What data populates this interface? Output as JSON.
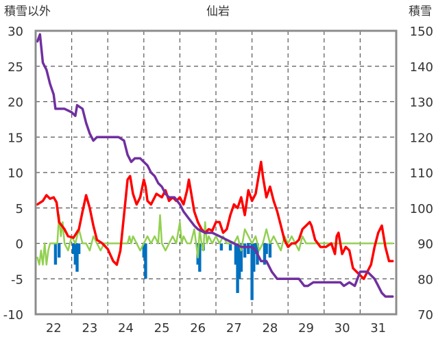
{
  "chart_data": {
    "type": "line",
    "title": "仙岩",
    "ylabel_left": "積雪以外",
    "ylabel_right": "積雪",
    "xlabel": "",
    "x_ticks": [
      "22",
      "23",
      "24",
      "25",
      "26",
      "27",
      "28",
      "29",
      "30",
      "31"
    ],
    "ylim_left": [
      -10,
      30
    ],
    "y_ticks_left": [
      "30",
      "25",
      "20",
      "15",
      "10",
      "5",
      "0",
      "-5",
      "-10"
    ],
    "ylim_right": [
      70,
      150
    ],
    "y_ticks_right": [
      "150",
      "140",
      "130",
      "120",
      "110",
      "100",
      "90",
      "80",
      "70"
    ],
    "xlim": [
      21.5,
      31.5
    ],
    "grid": true,
    "legend": "none",
    "colors": {
      "snow_depth": "#7030a0",
      "temperature": "#ff0000",
      "wind": "#92d050",
      "precipitation": "#0070c0",
      "grid": "#555555",
      "frame": "#8c8c8c"
    },
    "series": [
      {
        "axis": "right",
        "color": "#7030a0",
        "points": [
          [
            21.55,
            147
          ],
          [
            21.62,
            149
          ],
          [
            21.7,
            141
          ],
          [
            21.8,
            139
          ],
          [
            21.9,
            135
          ],
          [
            22.0,
            132
          ],
          [
            22.05,
            128
          ],
          [
            22.15,
            128
          ],
          [
            22.3,
            128
          ],
          [
            22.5,
            127
          ],
          [
            22.6,
            126
          ],
          [
            22.65,
            129
          ],
          [
            22.8,
            128
          ],
          [
            22.9,
            124
          ],
          [
            23.0,
            121
          ],
          [
            23.1,
            119
          ],
          [
            23.2,
            120
          ],
          [
            23.4,
            120
          ],
          [
            23.6,
            120
          ],
          [
            23.8,
            120
          ],
          [
            23.95,
            119
          ],
          [
            24.05,
            115
          ],
          [
            24.15,
            113
          ],
          [
            24.25,
            114
          ],
          [
            24.4,
            114
          ],
          [
            24.5,
            113
          ],
          [
            24.6,
            112
          ],
          [
            24.7,
            110
          ],
          [
            24.8,
            109
          ],
          [
            24.9,
            107
          ],
          [
            25.0,
            106
          ],
          [
            25.1,
            104
          ],
          [
            25.2,
            103
          ],
          [
            25.35,
            103
          ],
          [
            25.5,
            101
          ],
          [
            25.6,
            99
          ],
          [
            25.75,
            97
          ],
          [
            25.9,
            95
          ],
          [
            26.0,
            94
          ],
          [
            26.2,
            93
          ],
          [
            26.4,
            93
          ],
          [
            26.6,
            92
          ],
          [
            26.8,
            91
          ],
          [
            27.0,
            90
          ],
          [
            27.2,
            89
          ],
          [
            27.4,
            89
          ],
          [
            27.5,
            89
          ],
          [
            27.6,
            88
          ],
          [
            27.75,
            85
          ],
          [
            27.9,
            85
          ],
          [
            28.05,
            82
          ],
          [
            28.2,
            80
          ],
          [
            28.5,
            80
          ],
          [
            28.8,
            80
          ],
          [
            28.95,
            78
          ],
          [
            29.05,
            78
          ],
          [
            29.2,
            79
          ],
          [
            29.5,
            79
          ],
          [
            29.8,
            79
          ],
          [
            29.95,
            79
          ],
          [
            30.05,
            78
          ],
          [
            30.2,
            79
          ],
          [
            30.35,
            78
          ],
          [
            30.5,
            82
          ],
          [
            30.7,
            82
          ],
          [
            30.9,
            80
          ],
          [
            31.0,
            78
          ],
          [
            31.1,
            76
          ],
          [
            31.2,
            75
          ],
          [
            31.3,
            75
          ],
          [
            31.4,
            75
          ]
        ]
      },
      {
        "axis": "left",
        "color": "#ff0000",
        "points": [
          [
            21.55,
            5.5
          ],
          [
            21.7,
            6.0
          ],
          [
            21.8,
            6.8
          ],
          [
            21.9,
            6.3
          ],
          [
            22.0,
            6.5
          ],
          [
            22.08,
            5.8
          ],
          [
            22.15,
            3.0
          ],
          [
            22.3,
            2.0
          ],
          [
            22.4,
            1.0
          ],
          [
            22.55,
            0.8
          ],
          [
            22.7,
            2.0
          ],
          [
            22.8,
            4.5
          ],
          [
            22.9,
            6.8
          ],
          [
            23.0,
            5.0
          ],
          [
            23.1,
            2.5
          ],
          [
            23.2,
            0.5
          ],
          [
            23.35,
            0.0
          ],
          [
            23.5,
            -0.8
          ],
          [
            23.65,
            -2.5
          ],
          [
            23.75,
            -3.0
          ],
          [
            23.85,
            -1.0
          ],
          [
            23.95,
            4.0
          ],
          [
            24.05,
            9.0
          ],
          [
            24.12,
            9.5
          ],
          [
            24.2,
            7.0
          ],
          [
            24.3,
            5.5
          ],
          [
            24.4,
            6.5
          ],
          [
            24.5,
            9.0
          ],
          [
            24.55,
            8.0
          ],
          [
            24.6,
            6.0
          ],
          [
            24.7,
            5.5
          ],
          [
            24.85,
            7.0
          ],
          [
            25.0,
            6.5
          ],
          [
            25.1,
            7.5
          ],
          [
            25.2,
            6.0
          ],
          [
            25.3,
            6.5
          ],
          [
            25.4,
            6.0
          ],
          [
            25.5,
            6.5
          ],
          [
            25.6,
            5.5
          ],
          [
            25.7,
            7.5
          ],
          [
            25.75,
            9.0
          ],
          [
            25.8,
            7.5
          ],
          [
            25.9,
            4.5
          ],
          [
            26.0,
            3.0
          ],
          [
            26.1,
            2.0
          ],
          [
            26.2,
            1.5
          ],
          [
            26.3,
            2.0
          ],
          [
            26.4,
            1.8
          ],
          [
            26.5,
            3.0
          ],
          [
            26.6,
            3.0
          ],
          [
            26.7,
            1.5
          ],
          [
            26.8,
            2.0
          ],
          [
            26.9,
            4.0
          ],
          [
            27.0,
            5.5
          ],
          [
            27.1,
            5.0
          ],
          [
            27.2,
            6.5
          ],
          [
            27.3,
            4.0
          ],
          [
            27.4,
            7.5
          ],
          [
            27.5,
            6.0
          ],
          [
            27.6,
            7.0
          ],
          [
            27.7,
            10.0
          ],
          [
            27.75,
            11.5
          ],
          [
            27.8,
            9.5
          ],
          [
            27.9,
            6.5
          ],
          [
            28.0,
            8.0
          ],
          [
            28.1,
            6.0
          ],
          [
            28.2,
            4.5
          ],
          [
            28.3,
            2.5
          ],
          [
            28.4,
            0.5
          ],
          [
            28.5,
            -0.5
          ],
          [
            28.6,
            0.0
          ],
          [
            28.7,
            0.0
          ],
          [
            28.8,
            0.5
          ],
          [
            28.9,
            2.0
          ],
          [
            29.0,
            2.5
          ],
          [
            29.1,
            3.0
          ],
          [
            29.15,
            2.5
          ],
          [
            29.25,
            0.5
          ],
          [
            29.4,
            -0.5
          ],
          [
            29.55,
            -0.5
          ],
          [
            29.7,
            0.0
          ],
          [
            29.8,
            -1.5
          ],
          [
            29.85,
            1.0
          ],
          [
            29.9,
            1.5
          ],
          [
            30.0,
            -1.5
          ],
          [
            30.1,
            -0.5
          ],
          [
            30.2,
            -1.0
          ],
          [
            30.3,
            -3.5
          ],
          [
            30.4,
            -4.0
          ],
          [
            30.5,
            -4.5
          ],
          [
            30.6,
            -5.0
          ],
          [
            30.7,
            -4.0
          ],
          [
            30.8,
            -3.0
          ],
          [
            30.9,
            -0.5
          ],
          [
            31.0,
            1.5
          ],
          [
            31.1,
            2.5
          ],
          [
            31.2,
            -0.5
          ],
          [
            31.3,
            -2.5
          ],
          [
            31.4,
            -2.5
          ]
        ]
      },
      {
        "axis": "left",
        "color": "#92d050",
        "points": [
          [
            21.55,
            -2
          ],
          [
            21.6,
            -3
          ],
          [
            21.65,
            -1
          ],
          [
            21.7,
            -3
          ],
          [
            21.75,
            0
          ],
          [
            21.8,
            -3
          ],
          [
            21.85,
            -1
          ],
          [
            21.9,
            0
          ],
          [
            22.0,
            0
          ],
          [
            22.1,
            0
          ],
          [
            22.15,
            4
          ],
          [
            22.2,
            1
          ],
          [
            22.25,
            3
          ],
          [
            22.3,
            0
          ],
          [
            22.4,
            -1
          ],
          [
            22.5,
            1
          ],
          [
            22.6,
            0
          ],
          [
            22.7,
            2
          ],
          [
            22.8,
            0
          ],
          [
            22.9,
            0
          ],
          [
            23.0,
            -1
          ],
          [
            23.1,
            1
          ],
          [
            23.2,
            0
          ],
          [
            23.3,
            -1
          ],
          [
            23.4,
            0
          ],
          [
            23.5,
            0
          ],
          [
            24.0,
            0
          ],
          [
            24.05,
            0
          ],
          [
            24.1,
            1
          ],
          [
            24.15,
            0
          ],
          [
            24.2,
            1
          ],
          [
            24.3,
            0
          ],
          [
            24.4,
            -1
          ],
          [
            24.5,
            0
          ],
          [
            24.6,
            1
          ],
          [
            24.7,
            0
          ],
          [
            24.8,
            1
          ],
          [
            24.9,
            0
          ],
          [
            24.95,
            4
          ],
          [
            25.0,
            0
          ],
          [
            25.1,
            -1
          ],
          [
            25.2,
            0
          ],
          [
            25.3,
            1
          ],
          [
            25.4,
            0
          ],
          [
            25.5,
            3
          ],
          [
            25.55,
            0
          ],
          [
            25.6,
            1
          ],
          [
            25.7,
            0
          ],
          [
            25.8,
            0
          ],
          [
            25.9,
            2
          ],
          [
            26.0,
            -2
          ],
          [
            26.05,
            2
          ],
          [
            26.1,
            0
          ],
          [
            26.15,
            -1
          ],
          [
            26.2,
            3
          ],
          [
            26.25,
            0
          ],
          [
            26.3,
            1
          ],
          [
            26.4,
            0
          ],
          [
            26.5,
            1
          ],
          [
            26.6,
            0
          ],
          [
            26.7,
            1
          ],
          [
            26.8,
            0
          ],
          [
            26.9,
            0
          ],
          [
            27.0,
            0
          ],
          [
            27.1,
            1
          ],
          [
            27.2,
            -1
          ],
          [
            27.3,
            2
          ],
          [
            27.4,
            1
          ],
          [
            27.5,
            0
          ],
          [
            27.6,
            1
          ],
          [
            27.7,
            -1
          ],
          [
            27.8,
            0
          ],
          [
            27.9,
            2
          ],
          [
            28.0,
            0
          ],
          [
            28.1,
            1
          ],
          [
            28.2,
            0
          ],
          [
            28.3,
            -1
          ],
          [
            28.4,
            1
          ],
          [
            28.5,
            0
          ],
          [
            28.6,
            1
          ],
          [
            28.7,
            0
          ],
          [
            28.8,
            -1
          ],
          [
            28.9,
            1
          ],
          [
            29.0,
            0
          ],
          [
            29.1,
            0
          ],
          [
            29.3,
            0
          ],
          [
            29.5,
            0
          ],
          [
            30.0,
            0
          ],
          [
            30.5,
            0
          ],
          [
            31.0,
            0
          ],
          [
            31.4,
            0
          ]
        ]
      },
      {
        "axis": "left",
        "color": "#0070c0",
        "type": "bar",
        "bars": [
          [
            22.05,
            -3
          ],
          [
            22.15,
            -2
          ],
          [
            22.55,
            -1.5
          ],
          [
            22.6,
            -3
          ],
          [
            22.65,
            -4
          ],
          [
            22.7,
            -1.5
          ],
          [
            24.5,
            -2
          ],
          [
            24.55,
            -5
          ],
          [
            26.0,
            -3
          ],
          [
            26.05,
            -4
          ],
          [
            26.15,
            -1
          ],
          [
            26.65,
            -1
          ],
          [
            26.9,
            -1
          ],
          [
            27.05,
            -3
          ],
          [
            27.1,
            -7
          ],
          [
            27.15,
            -5
          ],
          [
            27.2,
            -4
          ],
          [
            27.3,
            -2
          ],
          [
            27.4,
            -1.5
          ],
          [
            27.5,
            -8
          ],
          [
            27.55,
            -4
          ],
          [
            27.6,
            -1.5
          ],
          [
            27.65,
            -3
          ],
          [
            27.85,
            -3
          ],
          [
            27.9,
            -1.5
          ],
          [
            28.0,
            -2
          ]
        ]
      }
    ]
  }
}
